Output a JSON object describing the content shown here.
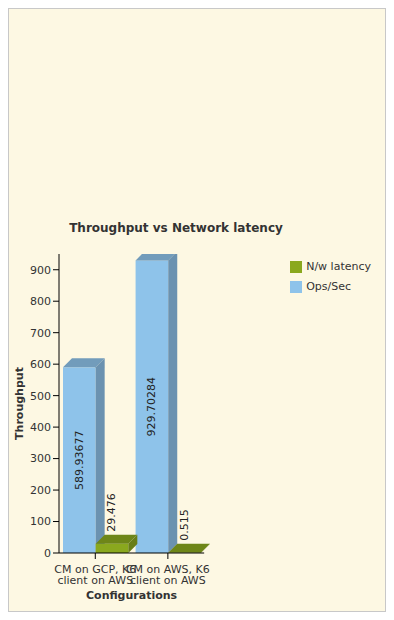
{
  "chart_data": {
    "type": "bar",
    "title": "Throughput vs Network latency",
    "x_label": "Configurations",
    "y_label": "Throughput",
    "categories": [
      "CM on GCP, K6 client on AWS",
      "CM on AWS, K6 client on AWS"
    ],
    "series": [
      {
        "name": "Ops/Sec",
        "color": "#8ec3ea",
        "values": [
          589.93677,
          929.70284
        ]
      },
      {
        "name": "N/w latency",
        "color": "#8aa81e",
        "values": [
          29.476,
          0.515
        ]
      }
    ],
    "ylim": [
      0,
      950
    ],
    "yticks": [
      0,
      100,
      200,
      300,
      400,
      500,
      600,
      700,
      800,
      900
    ],
    "grid": false,
    "legend": "right",
    "data_labels": true
  }
}
